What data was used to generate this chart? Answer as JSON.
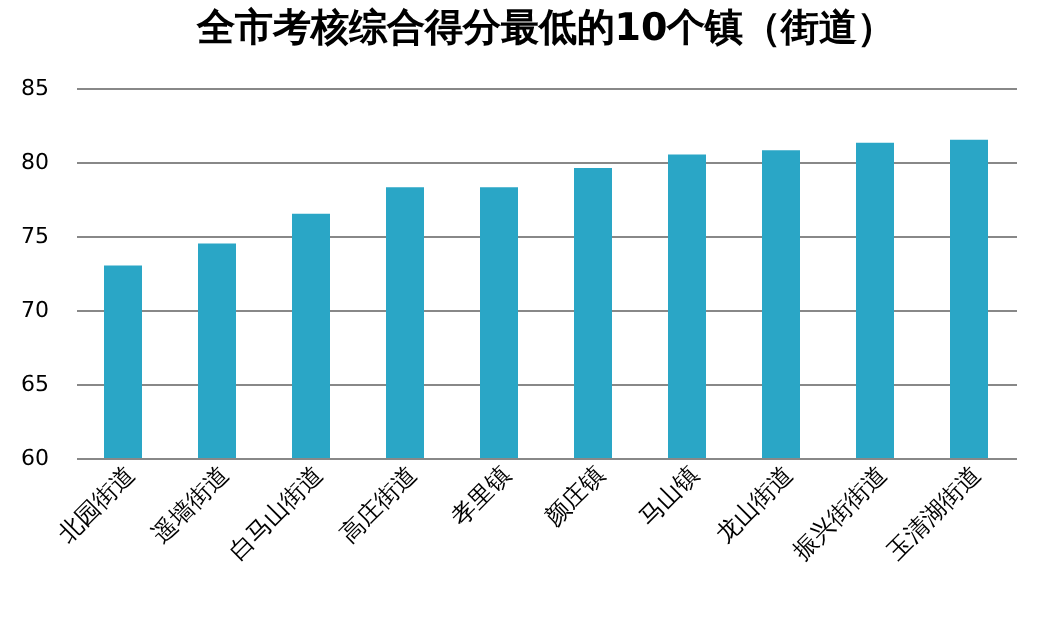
{
  "chart_data": {
    "type": "bar",
    "title": "全市考核综合得分最低的10个镇（街道）",
    "categories": [
      "北园街道",
      "遥墙街道",
      "白马山街道",
      "高庄街道",
      "孝里镇",
      "颜庄镇",
      "马山镇",
      "龙山街道",
      "振兴街街道",
      "玉清湖街道"
    ],
    "values": [
      73.0,
      74.5,
      76.5,
      78.3,
      78.3,
      79.6,
      80.5,
      80.8,
      81.3,
      81.5
    ],
    "color": "#2aa6c6",
    "ylim": [
      60,
      85
    ],
    "yticks": [
      60,
      65,
      70,
      75,
      80,
      85
    ],
    "grid": "y"
  }
}
